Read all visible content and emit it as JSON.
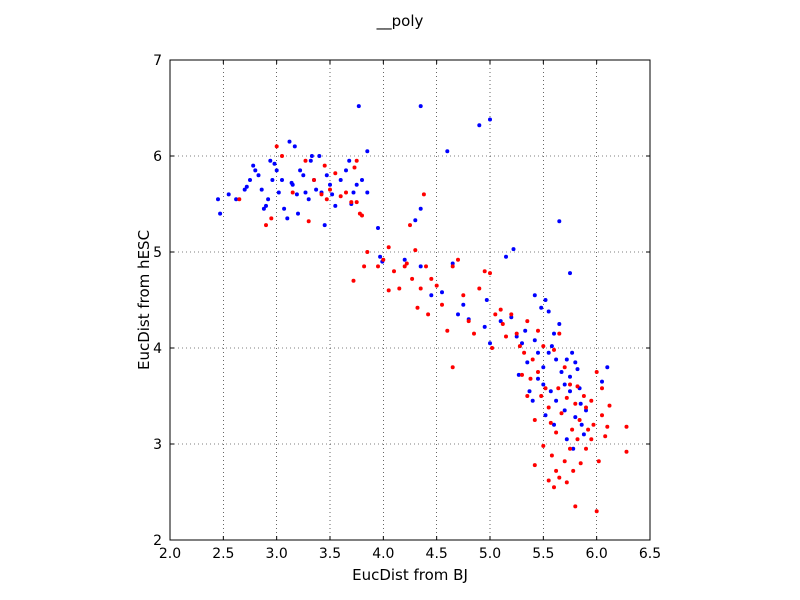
{
  "chart_data": {
    "type": "scatter",
    "title": "__poly",
    "xlabel": "EucDist from BJ",
    "ylabel": "EucDist from hESC",
    "xlim": [
      2.0,
      6.5
    ],
    "ylim": [
      2,
      7
    ],
    "xticks": [
      "2.0",
      "2.5",
      "3.0",
      "3.5",
      "4.0",
      "4.5",
      "5.0",
      "5.5",
      "6.0",
      "6.5"
    ],
    "yticks": [
      "2",
      "3",
      "4",
      "5",
      "6",
      "7"
    ],
    "grid": true,
    "series": [
      {
        "color": "#0000ff",
        "points": [
          [
            2.45,
            5.55
          ],
          [
            2.47,
            5.4
          ],
          [
            2.55,
            5.6
          ],
          [
            2.62,
            5.55
          ],
          [
            2.7,
            5.65
          ],
          [
            2.72,
            5.68
          ],
          [
            2.75,
            5.75
          ],
          [
            2.78,
            5.9
          ],
          [
            2.8,
            5.85
          ],
          [
            2.83,
            5.8
          ],
          [
            2.86,
            5.65
          ],
          [
            2.88,
            5.45
          ],
          [
            2.9,
            5.48
          ],
          [
            2.92,
            5.55
          ],
          [
            2.94,
            5.95
          ],
          [
            2.96,
            5.75
          ],
          [
            2.98,
            5.92
          ],
          [
            3.0,
            5.85
          ],
          [
            3.02,
            5.62
          ],
          [
            3.05,
            5.75
          ],
          [
            3.07,
            5.45
          ],
          [
            3.1,
            5.35
          ],
          [
            3.12,
            6.15
          ],
          [
            3.14,
            5.72
          ],
          [
            3.15,
            5.7
          ],
          [
            3.17,
            6.1
          ],
          [
            3.19,
            5.6
          ],
          [
            3.2,
            5.4
          ],
          [
            3.22,
            5.85
          ],
          [
            3.25,
            5.8
          ],
          [
            3.27,
            5.62
          ],
          [
            3.3,
            5.55
          ],
          [
            3.32,
            5.95
          ],
          [
            3.33,
            6.0
          ],
          [
            3.35,
            5.75
          ],
          [
            3.37,
            5.65
          ],
          [
            3.4,
            6.0
          ],
          [
            3.42,
            5.62
          ],
          [
            3.45,
            5.28
          ],
          [
            3.47,
            5.8
          ],
          [
            3.5,
            5.7
          ],
          [
            3.52,
            5.6
          ],
          [
            3.55,
            5.48
          ],
          [
            3.6,
            5.75
          ],
          [
            3.65,
            5.85
          ],
          [
            3.68,
            5.95
          ],
          [
            3.7,
            5.5
          ],
          [
            3.72,
            5.62
          ],
          [
            3.75,
            5.7
          ],
          [
            3.77,
            6.52
          ],
          [
            3.8,
            5.75
          ],
          [
            3.85,
            6.05
          ],
          [
            3.85,
            5.62
          ],
          [
            3.95,
            5.25
          ],
          [
            3.97,
            4.95
          ],
          [
            3.99,
            4.9
          ],
          [
            4.2,
            4.92
          ],
          [
            4.3,
            5.33
          ],
          [
            4.35,
            5.45
          ],
          [
            4.35,
            4.85
          ],
          [
            4.35,
            6.52
          ],
          [
            4.45,
            4.55
          ],
          [
            4.55,
            4.58
          ],
          [
            4.6,
            6.05
          ],
          [
            4.65,
            4.88
          ],
          [
            4.7,
            4.35
          ],
          [
            4.75,
            4.45
          ],
          [
            4.8,
            4.3
          ],
          [
            4.9,
            6.32
          ],
          [
            4.95,
            4.22
          ],
          [
            4.97,
            4.5
          ],
          [
            5.0,
            4.05
          ],
          [
            5.0,
            6.38
          ],
          [
            5.1,
            4.28
          ],
          [
            5.15,
            4.95
          ],
          [
            5.2,
            4.32
          ],
          [
            5.22,
            5.03
          ],
          [
            5.25,
            4.12
          ],
          [
            5.27,
            3.72
          ],
          [
            5.3,
            4.05
          ],
          [
            5.33,
            4.18
          ],
          [
            5.35,
            3.85
          ],
          [
            5.37,
            3.55
          ],
          [
            5.4,
            3.45
          ],
          [
            5.42,
            4.55
          ],
          [
            5.42,
            4.08
          ],
          [
            5.45,
            3.95
          ],
          [
            5.45,
            3.68
          ],
          [
            5.48,
            4.42
          ],
          [
            5.5,
            3.62
          ],
          [
            5.5,
            3.8
          ],
          [
            5.52,
            4.5
          ],
          [
            5.52,
            3.3
          ],
          [
            5.55,
            4.38
          ],
          [
            5.55,
            3.95
          ],
          [
            5.57,
            3.55
          ],
          [
            5.58,
            4.02
          ],
          [
            5.6,
            3.2
          ],
          [
            5.6,
            4.15
          ],
          [
            5.62,
            3.45
          ],
          [
            5.62,
            3.88
          ],
          [
            5.65,
            5.32
          ],
          [
            5.65,
            4.25
          ],
          [
            5.67,
            3.75
          ],
          [
            5.7,
            3.62
          ],
          [
            5.7,
            3.35
          ],
          [
            5.72,
            3.05
          ],
          [
            5.72,
            3.88
          ],
          [
            5.75,
            4.78
          ],
          [
            5.75,
            3.55
          ],
          [
            5.75,
            3.7
          ],
          [
            5.77,
            3.95
          ],
          [
            5.78,
            2.95
          ],
          [
            5.8,
            3.28
          ],
          [
            5.8,
            3.85
          ],
          [
            5.82,
            3.78
          ],
          [
            5.84,
            3.58
          ],
          [
            5.85,
            3.42
          ],
          [
            5.86,
            3.2
          ],
          [
            5.88,
            3.1
          ],
          [
            5.9,
            3.35
          ],
          [
            6.05,
            3.65
          ],
          [
            6.1,
            3.8
          ]
        ]
      },
      {
        "color": "#ff0000",
        "points": [
          [
            2.65,
            5.55
          ],
          [
            2.9,
            5.28
          ],
          [
            2.95,
            5.35
          ],
          [
            3.0,
            6.1
          ],
          [
            3.05,
            6.0
          ],
          [
            3.15,
            5.62
          ],
          [
            3.27,
            5.95
          ],
          [
            3.3,
            5.32
          ],
          [
            3.35,
            5.75
          ],
          [
            3.42,
            5.6
          ],
          [
            3.45,
            5.9
          ],
          [
            3.47,
            5.55
          ],
          [
            3.5,
            5.65
          ],
          [
            3.55,
            5.82
          ],
          [
            3.6,
            5.58
          ],
          [
            3.65,
            5.62
          ],
          [
            3.7,
            5.52
          ],
          [
            3.73,
            5.88
          ],
          [
            3.75,
            5.95
          ],
          [
            3.75,
            5.52
          ],
          [
            3.78,
            5.4
          ],
          [
            3.8,
            5.38
          ],
          [
            3.82,
            4.85
          ],
          [
            3.85,
            5.0
          ],
          [
            3.72,
            4.7
          ],
          [
            3.95,
            4.85
          ],
          [
            4.0,
            4.92
          ],
          [
            4.05,
            5.05
          ],
          [
            4.05,
            4.6
          ],
          [
            4.1,
            4.8
          ],
          [
            4.15,
            4.62
          ],
          [
            4.2,
            4.85
          ],
          [
            4.22,
            4.88
          ],
          [
            4.25,
            5.28
          ],
          [
            4.27,
            4.72
          ],
          [
            4.3,
            5.02
          ],
          [
            4.32,
            4.42
          ],
          [
            4.35,
            4.62
          ],
          [
            4.38,
            5.6
          ],
          [
            4.4,
            4.85
          ],
          [
            4.42,
            4.35
          ],
          [
            4.45,
            4.72
          ],
          [
            4.5,
            4.65
          ],
          [
            4.55,
            4.45
          ],
          [
            4.6,
            4.18
          ],
          [
            4.65,
            4.85
          ],
          [
            4.65,
            3.8
          ],
          [
            4.7,
            4.92
          ],
          [
            4.75,
            4.55
          ],
          [
            4.8,
            4.28
          ],
          [
            4.85,
            4.15
          ],
          [
            4.9,
            4.62
          ],
          [
            4.95,
            4.8
          ],
          [
            5.0,
            4.78
          ],
          [
            5.02,
            4.0
          ],
          [
            5.05,
            4.35
          ],
          [
            5.1,
            4.4
          ],
          [
            5.12,
            4.25
          ],
          [
            5.15,
            4.12
          ],
          [
            5.2,
            4.35
          ],
          [
            5.25,
            4.15
          ],
          [
            5.28,
            4.02
          ],
          [
            5.3,
            3.72
          ],
          [
            5.32,
            3.95
          ],
          [
            5.35,
            3.5
          ],
          [
            5.35,
            4.28
          ],
          [
            5.38,
            3.68
          ],
          [
            5.4,
            3.88
          ],
          [
            5.42,
            3.25
          ],
          [
            5.42,
            2.78
          ],
          [
            5.45,
            4.18
          ],
          [
            5.45,
            3.75
          ],
          [
            5.48,
            3.5
          ],
          [
            5.5,
            2.98
          ],
          [
            5.5,
            4.02
          ],
          [
            5.52,
            3.58
          ],
          [
            5.55,
            2.62
          ],
          [
            5.55,
            3.38
          ],
          [
            5.57,
            3.22
          ],
          [
            5.58,
            2.88
          ],
          [
            5.6,
            3.98
          ],
          [
            5.6,
            2.55
          ],
          [
            5.62,
            3.12
          ],
          [
            5.62,
            2.72
          ],
          [
            5.64,
            3.58
          ],
          [
            5.65,
            4.15
          ],
          [
            5.65,
            2.65
          ],
          [
            5.67,
            3.32
          ],
          [
            5.7,
            2.82
          ],
          [
            5.7,
            3.8
          ],
          [
            5.72,
            3.48
          ],
          [
            5.72,
            2.6
          ],
          [
            5.75,
            2.95
          ],
          [
            5.75,
            3.62
          ],
          [
            5.77,
            3.15
          ],
          [
            5.78,
            2.72
          ],
          [
            5.8,
            3.42
          ],
          [
            5.8,
            2.35
          ],
          [
            5.82,
            3.05
          ],
          [
            5.82,
            3.6
          ],
          [
            5.84,
            3.25
          ],
          [
            5.85,
            2.8
          ],
          [
            5.88,
            3.5
          ],
          [
            5.9,
            3.38
          ],
          [
            5.9,
            2.95
          ],
          [
            5.92,
            3.15
          ],
          [
            5.95,
            3.05
          ],
          [
            5.95,
            3.45
          ],
          [
            5.97,
            3.2
          ],
          [
            6.0,
            2.3
          ],
          [
            6.0,
            3.75
          ],
          [
            6.02,
            2.82
          ],
          [
            6.05,
            3.3
          ],
          [
            6.05,
            3.58
          ],
          [
            6.08,
            3.08
          ],
          [
            6.1,
            3.18
          ],
          [
            6.12,
            3.4
          ],
          [
            6.28,
            2.92
          ],
          [
            6.28,
            3.18
          ]
        ]
      }
    ]
  }
}
